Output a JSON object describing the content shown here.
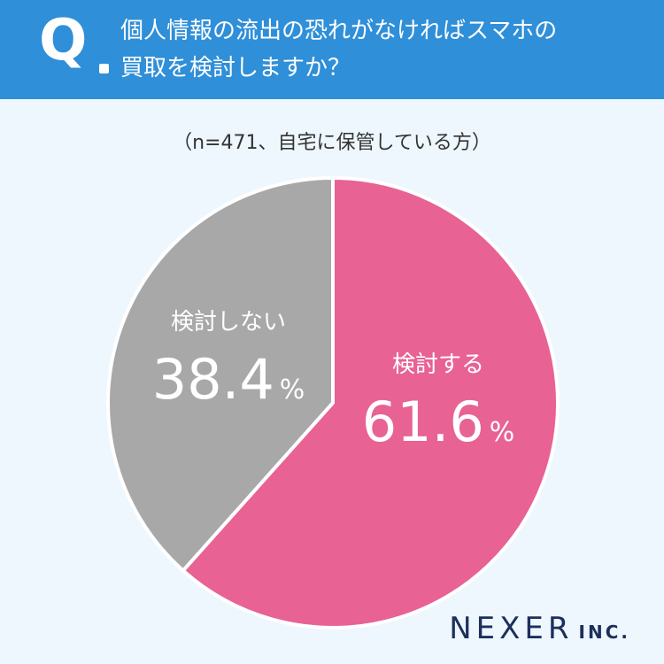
{
  "header": {
    "q_mark": "Q",
    "question_line1": "個人情報の流出の恐れがなければスマホの",
    "question_line2": "買取を検討しますか？",
    "colors": {
      "background": "#2f8fd8",
      "text": "#ffffff"
    }
  },
  "subtitle": "（n=471、自宅に保管している方）",
  "chart_data": {
    "type": "pie",
    "title": "個人情報の流出の恐れがなければスマホの買取を検討しますか？",
    "subtitle": "（n=471、自宅に保管している方）",
    "n": 471,
    "slices": [
      {
        "label": "検討する",
        "value": 61.6,
        "value_text": "61.6",
        "unit": "%",
        "color": "#e86294"
      },
      {
        "label": "検討しない",
        "value": 38.4,
        "value_text": "38.4",
        "unit": "%",
        "color": "#a8a8a8"
      }
    ],
    "start": "12 o'clock",
    "direction": "clockwise",
    "legend": "none (labels inside slices)"
  },
  "logo": {
    "main": "NEXER",
    "sub": "INC."
  },
  "colors": {
    "page_background": "#eef7fd",
    "slice_border": "#ffffff"
  }
}
